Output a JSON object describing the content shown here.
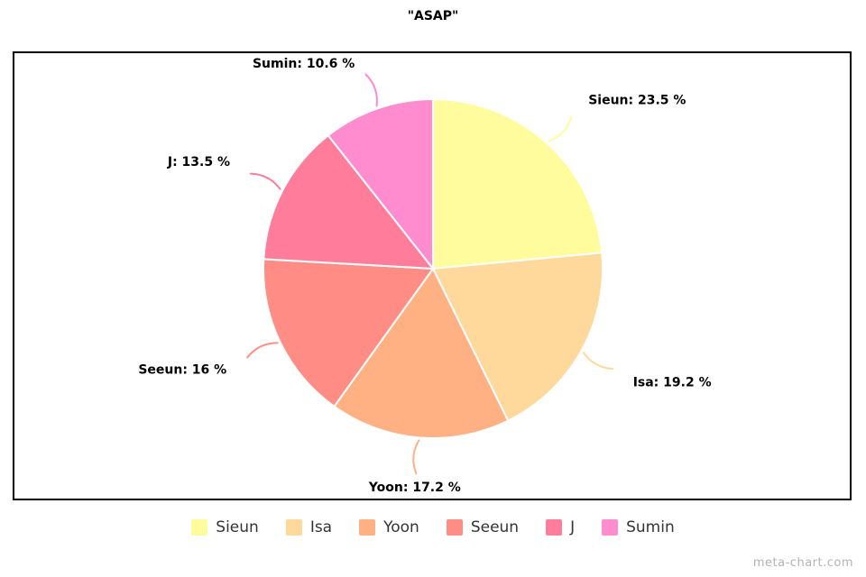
{
  "title": "\"ASAP\"",
  "watermark": "meta-chart.com",
  "chart_data": {
    "type": "pie",
    "title": "\"ASAP\"",
    "total": 100,
    "start_angle_deg": 0,
    "direction": "clockwise",
    "legend_position": "bottom",
    "background": "#ffffff",
    "frame_border_color": "#000000",
    "segments": [
      {
        "label": "Sieun",
        "value": 23.5,
        "color": "#FFFC9E",
        "callout": "Sieun: 23.5 %"
      },
      {
        "label": "Isa",
        "value": 19.2,
        "color": "#FFD89B",
        "callout": "Isa: 19.2 %"
      },
      {
        "label": "Yoon",
        "value": 17.2,
        "color": "#FFB184",
        "callout": "Yoon: 17.2 %"
      },
      {
        "label": "Seeun",
        "value": 16,
        "color": "#FF8D85",
        "callout": "Seeun: 16 %"
      },
      {
        "label": "J",
        "value": 13.5,
        "color": "#FF7D9B",
        "callout": "J: 13.5 %"
      },
      {
        "label": "Sumin",
        "value": 10.6,
        "color": "#FF8CCE",
        "callout": "Sumin: 10.6 %"
      }
    ]
  }
}
